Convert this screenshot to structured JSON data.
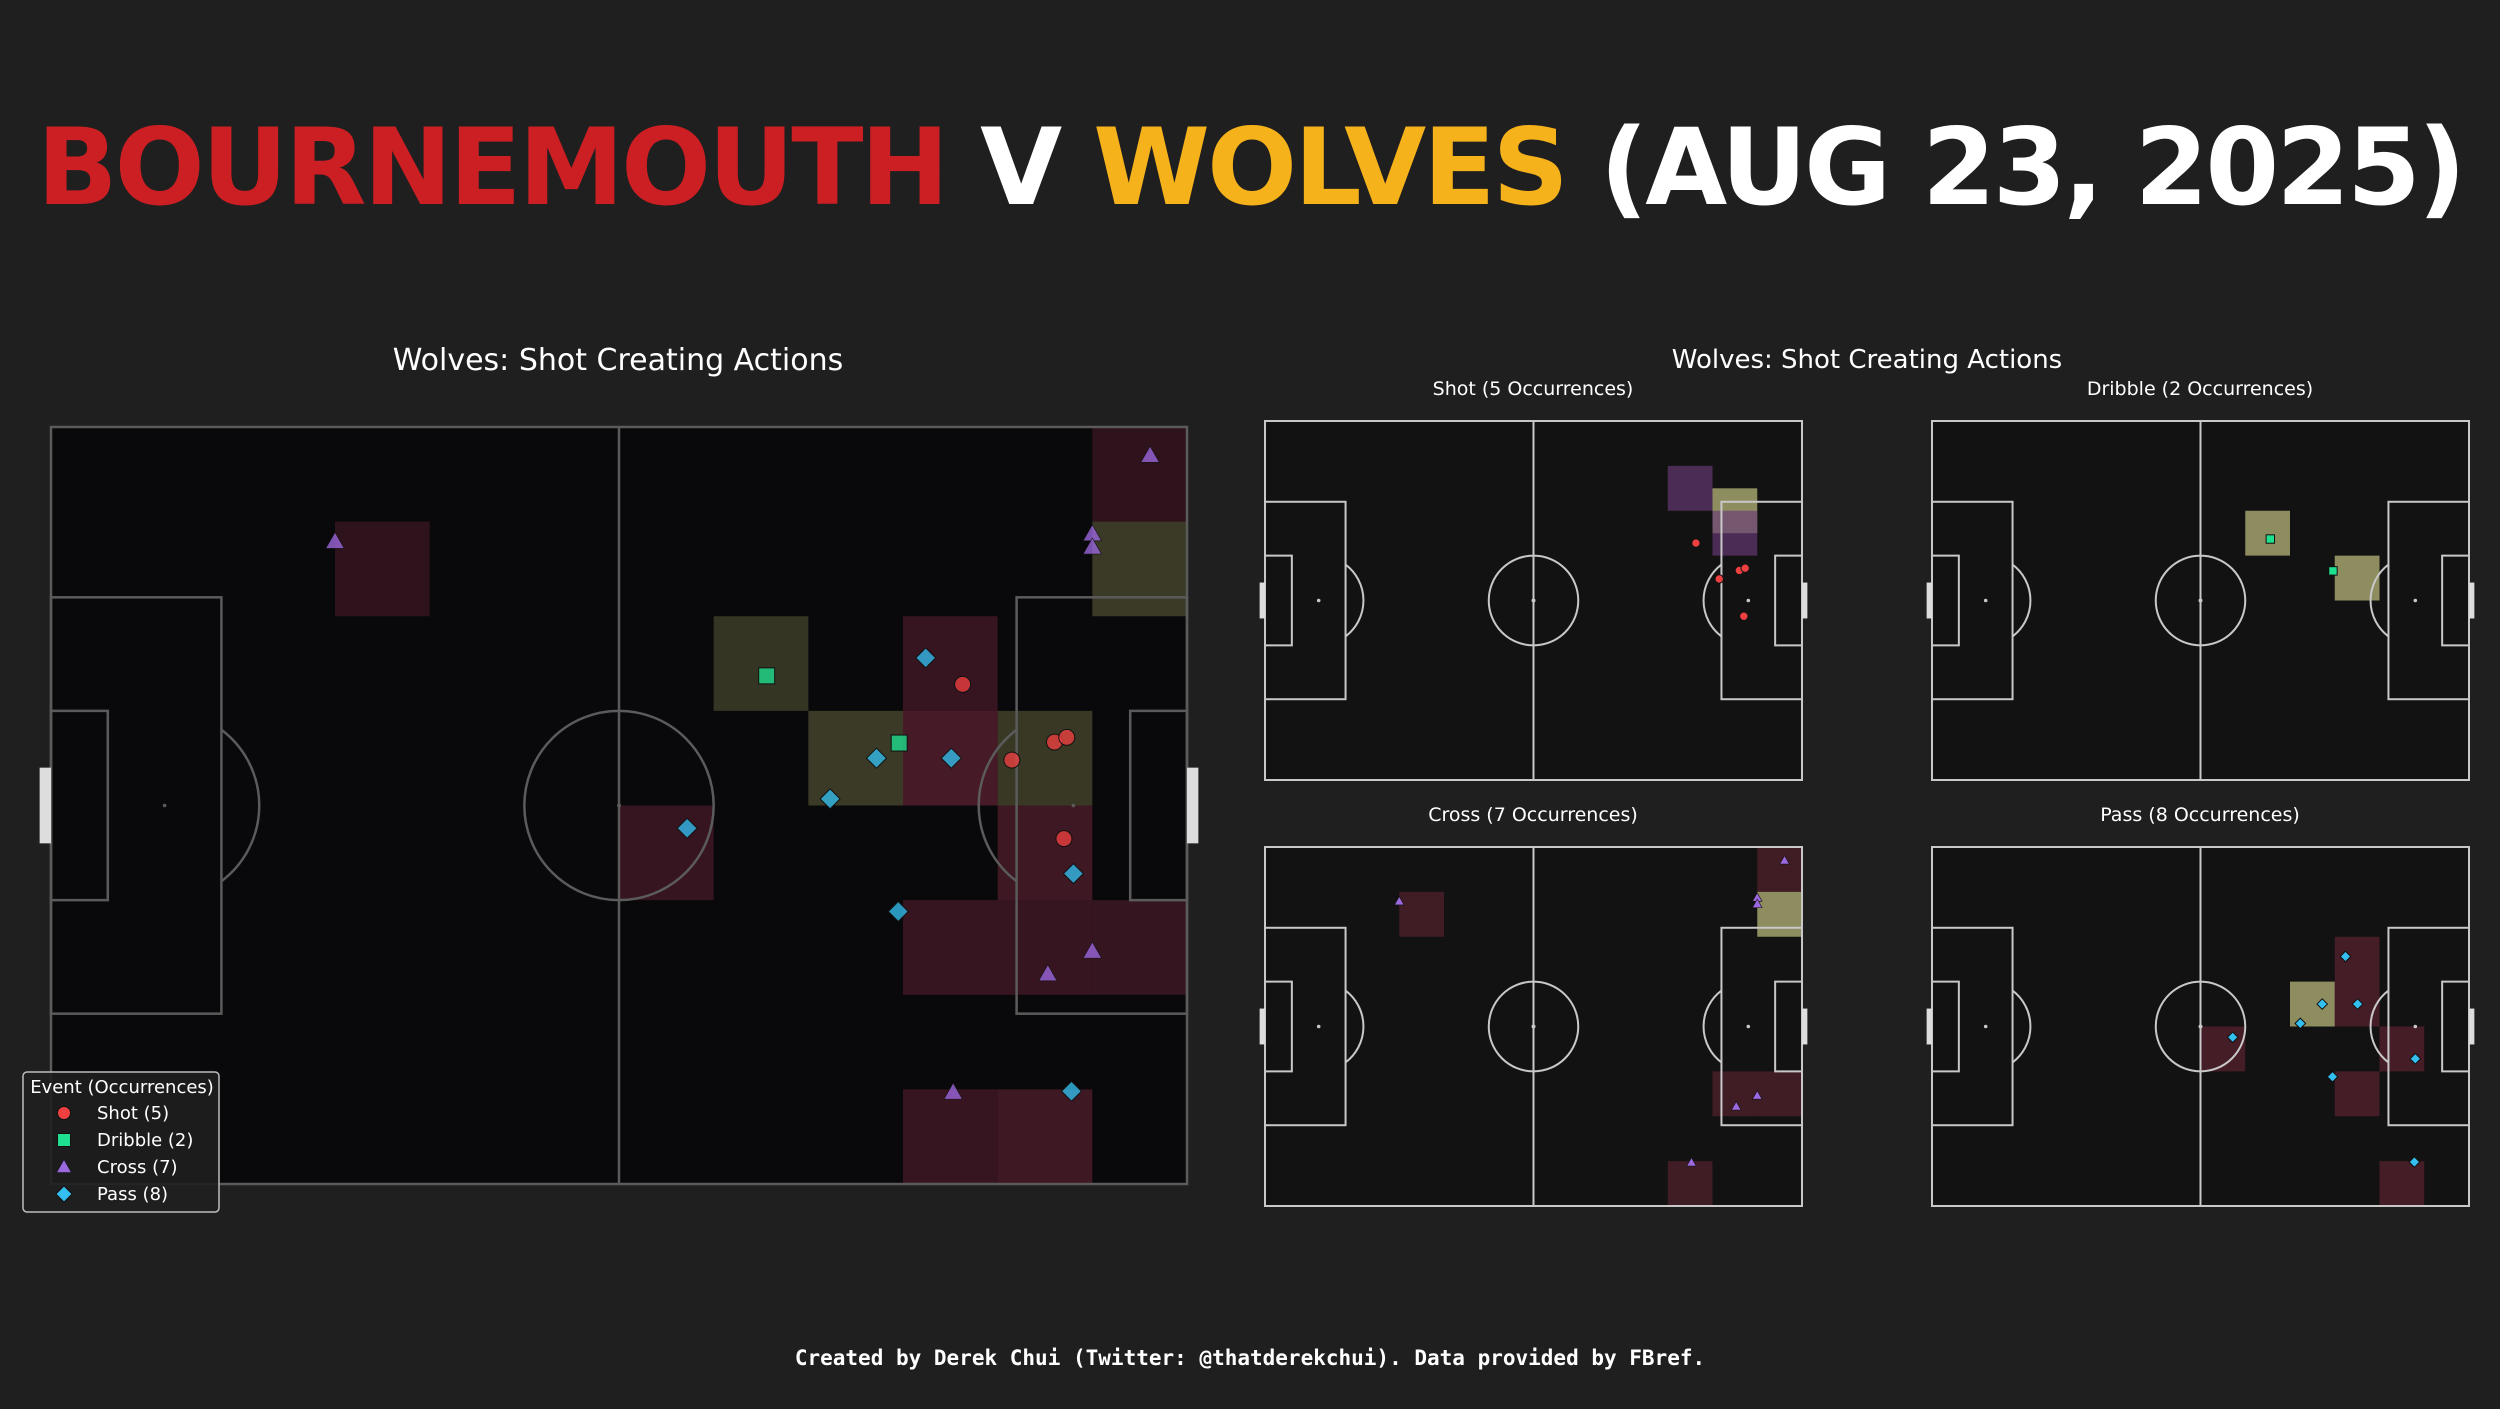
{
  "header": {
    "home": "BOURNEMOUTH",
    "v": "V",
    "away": "WOLVES",
    "date": "(AUG 23, 2025)",
    "home_color": "#cc1f23",
    "away_color": "#f6b21b"
  },
  "footer": "Created by Derek Chui (Twitter: @thatderekchui). Data provided by FBref.",
  "colors": {
    "Shot": "#ee4040",
    "Dribble": "#1ee08e",
    "Cross": "#9c68e0",
    "Pass": "#33bff0",
    "pitch_bg": "#09090c",
    "mini_pitch_bg": "#121212",
    "heat_low": "#3a1a22",
    "heat_mid": "#7a2b3a",
    "heat_high": "#f4f2a0"
  },
  "chart_data": [
    {
      "type": "scatter",
      "id": "main",
      "title": "Wolves: Shot Creating Actions",
      "pitch": {
        "length": 120,
        "width": 80
      },
      "legend": {
        "title": "Event (Occurrences)",
        "placement": "bottom-left",
        "entries": [
          {
            "event": "Shot",
            "label": "Shot (5)",
            "marker": "circle"
          },
          {
            "event": "Dribble",
            "label": "Dribble (2)",
            "marker": "square"
          },
          {
            "event": "Cross",
            "label": "Cross (7)",
            "marker": "triangle"
          },
          {
            "event": "Pass",
            "label": "Pass (8)",
            "marker": "diamond"
          }
        ]
      },
      "heatmap_bins": {
        "bin_x": 10,
        "bin_y": 10
      },
      "heatmap": [
        {
          "x": 30,
          "y": 10,
          "level": 0.2
        },
        {
          "x": 110,
          "y": 0,
          "level": 0.2
        },
        {
          "x": 110,
          "y": 10,
          "level": 0.35,
          "tone": "olive"
        },
        {
          "x": 70,
          "y": 20,
          "level": 0.25,
          "tone": "olive"
        },
        {
          "x": 90,
          "y": 20,
          "level": 0.35
        },
        {
          "x": 80,
          "y": 30,
          "level": 0.35,
          "tone": "olive"
        },
        {
          "x": 90,
          "y": 30,
          "level": 0.6
        },
        {
          "x": 100,
          "y": 30,
          "level": 0.3,
          "tone": "olive"
        },
        {
          "x": 60,
          "y": 40,
          "level": 0.35
        },
        {
          "x": 100,
          "y": 40,
          "level": 0.45
        },
        {
          "x": 90,
          "y": 50,
          "level": 0.35
        },
        {
          "x": 100,
          "y": 50,
          "level": 0.35
        },
        {
          "x": 110,
          "y": 50,
          "level": 0.3
        },
        {
          "x": 90,
          "y": 70,
          "level": 0.35
        },
        {
          "x": 100,
          "y": 70,
          "level": 0.45
        }
      ],
      "points": [
        {
          "event": "Shot",
          "x": 96.3,
          "y": 27.2
        },
        {
          "event": "Shot",
          "x": 101.5,
          "y": 35.2
        },
        {
          "event": "Shot",
          "x": 106.0,
          "y": 33.3
        },
        {
          "event": "Shot",
          "x": 107.3,
          "y": 32.8
        },
        {
          "event": "Shot",
          "x": 107.0,
          "y": 43.5
        },
        {
          "event": "Dribble",
          "x": 75.6,
          "y": 26.3
        },
        {
          "event": "Dribble",
          "x": 89.6,
          "y": 33.4
        },
        {
          "event": "Cross",
          "x": 30.0,
          "y": 12.1
        },
        {
          "event": "Cross",
          "x": 116.1,
          "y": 3.0
        },
        {
          "event": "Cross",
          "x": 110.0,
          "y": 11.3
        },
        {
          "event": "Cross",
          "x": 110.0,
          "y": 12.7
        },
        {
          "event": "Cross",
          "x": 110.0,
          "y": 55.4
        },
        {
          "event": "Cross",
          "x": 105.3,
          "y": 57.8
        },
        {
          "event": "Cross",
          "x": 95.3,
          "y": 70.3
        },
        {
          "event": "Pass",
          "x": 92.4,
          "y": 24.4
        },
        {
          "event": "Pass",
          "x": 87.2,
          "y": 35.0
        },
        {
          "event": "Pass",
          "x": 95.1,
          "y": 35.0
        },
        {
          "event": "Pass",
          "x": 82.3,
          "y": 39.3
        },
        {
          "event": "Pass",
          "x": 67.2,
          "y": 42.4
        },
        {
          "event": "Pass",
          "x": 108.0,
          "y": 47.2
        },
        {
          "event": "Pass",
          "x": 89.5,
          "y": 51.2
        },
        {
          "event": "Pass",
          "x": 107.8,
          "y": 70.2
        }
      ]
    },
    {
      "type": "scatter",
      "id": "shot",
      "group_title": "Wolves: Shot Creating Actions",
      "title": "Shot  (5 Occurrences)",
      "event": "Shot",
      "heatmap": [
        {
          "x": 90,
          "y": 10,
          "level": 0.5,
          "tone": "purple"
        },
        {
          "x": 100,
          "y": 15,
          "level": 1.0
        },
        {
          "x": 100,
          "y": 20,
          "level": 0.5,
          "tone": "purple"
        }
      ],
      "points": [
        {
          "x": 96.3,
          "y": 27.2
        },
        {
          "x": 101.5,
          "y": 35.2
        },
        {
          "x": 106.0,
          "y": 33.3
        },
        {
          "x": 107.3,
          "y": 32.8
        },
        {
          "x": 107.0,
          "y": 43.5
        }
      ]
    },
    {
      "type": "scatter",
      "id": "dribble",
      "title": "Dribble  (2 Occurrences)",
      "event": "Dribble",
      "heatmap": [
        {
          "x": 70,
          "y": 20,
          "level": 1.0
        },
        {
          "x": 90,
          "y": 30,
          "level": 1.0
        }
      ],
      "points": [
        {
          "x": 75.6,
          "y": 26.3
        },
        {
          "x": 89.6,
          "y": 33.4
        }
      ]
    },
    {
      "type": "scatter",
      "id": "cross",
      "title": "Cross  (7 Occurrences)",
      "event": "Cross",
      "heatmap": [
        {
          "x": 30,
          "y": 10,
          "level": 0.4
        },
        {
          "x": 110,
          "y": 0,
          "level": 0.4
        },
        {
          "x": 110,
          "y": 10,
          "level": 1.0
        },
        {
          "x": 100,
          "y": 50,
          "level": 0.4
        },
        {
          "x": 110,
          "y": 50,
          "level": 0.4
        },
        {
          "x": 90,
          "y": 70,
          "level": 0.4
        }
      ],
      "points": [
        {
          "x": 30.0,
          "y": 12.1
        },
        {
          "x": 116.1,
          "y": 3.0
        },
        {
          "x": 110.0,
          "y": 11.3
        },
        {
          "x": 110.0,
          "y": 12.7
        },
        {
          "x": 110.0,
          "y": 55.4
        },
        {
          "x": 105.3,
          "y": 57.8
        },
        {
          "x": 95.3,
          "y": 70.3
        }
      ]
    },
    {
      "type": "scatter",
      "id": "pass",
      "title": "Pass  (8 Occurrences)",
      "event": "Pass",
      "heatmap": [
        {
          "x": 90,
          "y": 20,
          "level": 0.5
        },
        {
          "x": 80,
          "y": 30,
          "level": 1.0
        },
        {
          "x": 90,
          "y": 30,
          "level": 0.5
        },
        {
          "x": 60,
          "y": 40,
          "level": 0.5
        },
        {
          "x": 100,
          "y": 40,
          "level": 0.5
        },
        {
          "x": 90,
          "y": 50,
          "level": 0.5
        },
        {
          "x": 100,
          "y": 70,
          "level": 0.5
        }
      ],
      "points": [
        {
          "x": 92.4,
          "y": 24.4
        },
        {
          "x": 87.2,
          "y": 35.0
        },
        {
          "x": 95.1,
          "y": 35.0
        },
        {
          "x": 82.3,
          "y": 39.3
        },
        {
          "x": 67.2,
          "y": 42.4
        },
        {
          "x": 108.0,
          "y": 47.2
        },
        {
          "x": 89.5,
          "y": 51.2
        },
        {
          "x": 107.8,
          "y": 70.2
        }
      ]
    }
  ]
}
